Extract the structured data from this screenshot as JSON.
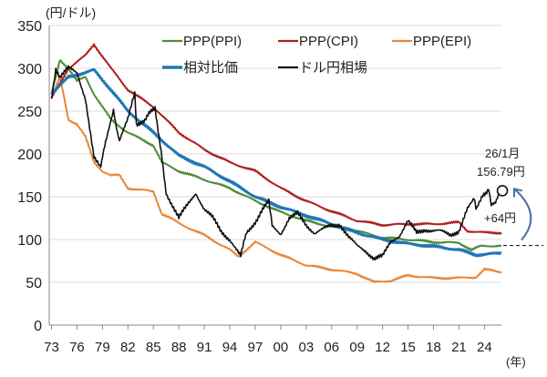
{
  "chart_data": {
    "type": "line",
    "ylabel": "(円/ドル)",
    "xlabel": "(年)",
    "ylim": [
      0,
      350
    ],
    "yticks": [
      0,
      50,
      100,
      150,
      200,
      250,
      300,
      350
    ],
    "xlim": [
      1973,
      2026
    ],
    "xticks": [
      1973,
      1976,
      1979,
      1982,
      1985,
      1988,
      1991,
      1994,
      1997,
      2000,
      2003,
      2006,
      2009,
      2012,
      2015,
      2018,
      2021,
      2024
    ],
    "xtick_labels": [
      "73",
      "76",
      "79",
      "82",
      "85",
      "88",
      "91",
      "94",
      "97",
      "00",
      "03",
      "06",
      "09",
      "12",
      "15",
      "18",
      "21",
      "24"
    ],
    "grid": true,
    "legend_position": "top-right",
    "series": [
      {
        "name": "PPP(PPI)",
        "color": "#4e8a3a",
        "width": 2,
        "x": [
          1973,
          1974,
          1975,
          1976,
          1977,
          1978,
          1980,
          1982,
          1985,
          1986,
          1988,
          1991,
          1994,
          1997,
          2000,
          2003,
          2006,
          2009,
          2012,
          2015,
          2018,
          2021,
          2022.5,
          2023.5,
          2026
        ],
        "y": [
          270,
          310,
          300,
          285,
          290,
          270,
          240,
          225,
          210,
          190,
          180,
          170,
          160,
          145,
          132,
          122,
          115,
          110,
          102,
          100,
          97,
          96,
          88,
          92,
          93
        ]
      },
      {
        "name": "PPP(CPI)",
        "color": "#b01e1e",
        "width": 2,
        "x": [
          1973,
          1975,
          1977,
          1978,
          1980,
          1982,
          1985,
          1988,
          1991,
          1994,
          1997,
          2000,
          2003,
          2006,
          2009,
          2012,
          2015,
          2018,
          2021,
          2022,
          2024,
          2026
        ],
        "y": [
          265,
          300,
          315,
          328,
          300,
          275,
          255,
          225,
          205,
          190,
          180,
          160,
          145,
          133,
          122,
          117,
          118,
          118,
          120,
          110,
          108,
          108
        ]
      },
      {
        "name": "PPP(EPI)",
        "color": "#e8873a",
        "width": 2,
        "x": [
          1973,
          1974,
          1975,
          1976,
          1977,
          1978,
          1979,
          1980,
          1981,
          1982,
          1985,
          1986,
          1987,
          1988,
          1991,
          1994,
          1995,
          1997,
          2000,
          2003,
          2006,
          2009,
          2011,
          2013,
          2015,
          2018,
          2021,
          2023,
          2024,
          2026
        ],
        "y": [
          265,
          290,
          240,
          235,
          220,
          190,
          180,
          175,
          175,
          160,
          156,
          130,
          125,
          119,
          105,
          88,
          80,
          97,
          82,
          70,
          65,
          60,
          50,
          52,
          58,
          55,
          55,
          56,
          65,
          62
        ]
      },
      {
        "name": "相対比価",
        "color": "#1f78b4",
        "width": 3,
        "x": [
          1973,
          1975,
          1977,
          1978,
          1980,
          1982,
          1985,
          1988,
          1991,
          1994,
          1997,
          2000,
          2003,
          2006,
          2009,
          2012,
          2015,
          2018,
          2021,
          2023,
          2026
        ],
        "y": [
          270,
          290,
          295,
          298,
          275,
          250,
          225,
          198,
          185,
          168,
          150,
          138,
          128,
          118,
          108,
          100,
          95,
          92,
          88,
          82,
          84
        ]
      },
      {
        "name": "ドル円相場",
        "color": "#111111",
        "width": 1.6,
        "x": [
          1973,
          1973.5,
          1974,
          1975,
          1976,
          1977,
          1978,
          1978.8,
          1979.5,
          1980.3,
          1981,
          1982,
          1982.8,
          1983,
          1984,
          1985.2,
          1985.8,
          1986.5,
          1987,
          1988,
          1989,
          1990,
          1991,
          1992,
          1993,
          1994,
          1995.3,
          1996,
          1997,
          1998.6,
          1999,
          2000,
          2001,
          2002,
          2003,
          2004,
          2005,
          2006,
          2007,
          2008,
          2009,
          2010,
          2011,
          2012,
          2013,
          2014,
          2015,
          2016,
          2017,
          2018,
          2019,
          2020,
          2021,
          2022,
          2022.8,
          2023,
          2023.8,
          2024.5,
          2024.8,
          2025.3,
          2025.9
        ],
        "y": [
          265,
          300,
          290,
          300,
          295,
          265,
          195,
          185,
          220,
          250,
          215,
          240,
          270,
          235,
          240,
          255,
          210,
          155,
          145,
          125,
          140,
          155,
          135,
          125,
          110,
          100,
          83,
          108,
          121,
          145,
          115,
          107,
          125,
          130,
          117,
          108,
          112,
          116,
          118,
          103,
          92,
          87,
          78,
          80,
          98,
          105,
          121,
          108,
          112,
          110,
          109,
          106,
          110,
          135,
          148,
          135,
          150,
          160,
          142,
          145,
          157
        ]
      }
    ],
    "annotations": {
      "latest_date": "26/1月",
      "latest_value": "156.79円",
      "gap_label": "+64円",
      "reference_level": 93
    }
  }
}
